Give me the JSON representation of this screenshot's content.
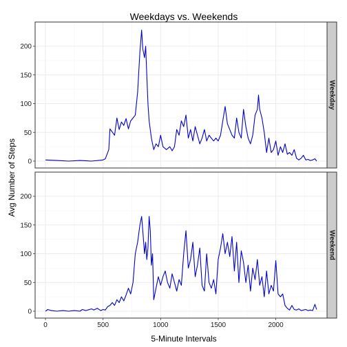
{
  "chart_data": {
    "type": "line",
    "title": "Weekdays vs. Weekends",
    "xlabel": "5-Minute Intervals",
    "ylabel": "Avg Number of Steps",
    "xlim": [
      -90,
      2445
    ],
    "ylim": [
      -12,
      242
    ],
    "x_ticks": [
      0,
      500,
      1000,
      1500,
      2000
    ],
    "y_ticks": [
      0,
      50,
      100,
      150,
      200
    ],
    "grid": true,
    "line_color": "#0000cc",
    "panels": [
      {
        "name": "Weekday",
        "points": [
          [
            0,
            2
          ],
          [
            100,
            1
          ],
          [
            200,
            0
          ],
          [
            300,
            1
          ],
          [
            400,
            0
          ],
          [
            500,
            2
          ],
          [
            520,
            4
          ],
          [
            550,
            20
          ],
          [
            560,
            56
          ],
          [
            600,
            45
          ],
          [
            620,
            75
          ],
          [
            640,
            55
          ],
          [
            660,
            68
          ],
          [
            680,
            62
          ],
          [
            700,
            74
          ],
          [
            720,
            56
          ],
          [
            740,
            70
          ],
          [
            760,
            75
          ],
          [
            780,
            80
          ],
          [
            800,
            120
          ],
          [
            820,
            190
          ],
          [
            835,
            228
          ],
          [
            845,
            195
          ],
          [
            860,
            180
          ],
          [
            870,
            200
          ],
          [
            880,
            150
          ],
          [
            890,
            100
          ],
          [
            900,
            70
          ],
          [
            920,
            40
          ],
          [
            940,
            20
          ],
          [
            960,
            30
          ],
          [
            980,
            25
          ],
          [
            1000,
            45
          ],
          [
            1020,
            25
          ],
          [
            1050,
            20
          ],
          [
            1080,
            25
          ],
          [
            1100,
            18
          ],
          [
            1120,
            25
          ],
          [
            1140,
            55
          ],
          [
            1160,
            45
          ],
          [
            1180,
            70
          ],
          [
            1200,
            60
          ],
          [
            1220,
            80
          ],
          [
            1240,
            40
          ],
          [
            1260,
            55
          ],
          [
            1280,
            35
          ],
          [
            1300,
            60
          ],
          [
            1320,
            45
          ],
          [
            1340,
            30
          ],
          [
            1360,
            40
          ],
          [
            1380,
            55
          ],
          [
            1400,
            35
          ],
          [
            1420,
            45
          ],
          [
            1440,
            40
          ],
          [
            1460,
            35
          ],
          [
            1480,
            40
          ],
          [
            1500,
            35
          ],
          [
            1520,
            45
          ],
          [
            1540,
            70
          ],
          [
            1560,
            95
          ],
          [
            1580,
            65
          ],
          [
            1600,
            55
          ],
          [
            1620,
            45
          ],
          [
            1640,
            40
          ],
          [
            1660,
            75
          ],
          [
            1680,
            50
          ],
          [
            1700,
            40
          ],
          [
            1720,
            90
          ],
          [
            1740,
            60
          ],
          [
            1760,
            40
          ],
          [
            1780,
            30
          ],
          [
            1800,
            45
          ],
          [
            1820,
            80
          ],
          [
            1840,
            90
          ],
          [
            1850,
            115
          ],
          [
            1860,
            90
          ],
          [
            1880,
            75
          ],
          [
            1900,
            50
          ],
          [
            1920,
            15
          ],
          [
            1940,
            40
          ],
          [
            1960,
            15
          ],
          [
            1980,
            20
          ],
          [
            2000,
            35
          ],
          [
            2020,
            10
          ],
          [
            2040,
            25
          ],
          [
            2060,
            15
          ],
          [
            2080,
            30
          ],
          [
            2100,
            12
          ],
          [
            2120,
            15
          ],
          [
            2140,
            10
          ],
          [
            2160,
            20
          ],
          [
            2180,
            5
          ],
          [
            2200,
            2
          ],
          [
            2220,
            5
          ],
          [
            2240,
            10
          ],
          [
            2260,
            2
          ],
          [
            2280,
            3
          ],
          [
            2300,
            1
          ],
          [
            2320,
            2
          ],
          [
            2340,
            4
          ],
          [
            2355,
            0
          ]
        ]
      },
      {
        "name": "Weekend",
        "points": [
          [
            0,
            0
          ],
          [
            20,
            3
          ],
          [
            50,
            1
          ],
          [
            100,
            0
          ],
          [
            150,
            1
          ],
          [
            200,
            0
          ],
          [
            250,
            1
          ],
          [
            300,
            0
          ],
          [
            320,
            3
          ],
          [
            350,
            1
          ],
          [
            400,
            4
          ],
          [
            420,
            2
          ],
          [
            450,
            5
          ],
          [
            480,
            1
          ],
          [
            500,
            3
          ],
          [
            520,
            2
          ],
          [
            540,
            8
          ],
          [
            560,
            10
          ],
          [
            580,
            15
          ],
          [
            600,
            10
          ],
          [
            620,
            20
          ],
          [
            640,
            15
          ],
          [
            660,
            25
          ],
          [
            680,
            18
          ],
          [
            700,
            28
          ],
          [
            720,
            40
          ],
          [
            740,
            30
          ],
          [
            760,
            50
          ],
          [
            780,
            100
          ],
          [
            800,
            120
          ],
          [
            820,
            150
          ],
          [
            835,
            165
          ],
          [
            845,
            140
          ],
          [
            860,
            100
          ],
          [
            870,
            120
          ],
          [
            880,
            90
          ],
          [
            890,
            110
          ],
          [
            900,
            165
          ],
          [
            910,
            140
          ],
          [
            920,
            80
          ],
          [
            930,
            100
          ],
          [
            940,
            20
          ],
          [
            960,
            40
          ],
          [
            980,
            60
          ],
          [
            1000,
            45
          ],
          [
            1020,
            60
          ],
          [
            1040,
            70
          ],
          [
            1060,
            50
          ],
          [
            1080,
            40
          ],
          [
            1100,
            65
          ],
          [
            1120,
            50
          ],
          [
            1140,
            35
          ],
          [
            1160,
            55
          ],
          [
            1180,
            45
          ],
          [
            1200,
            100
          ],
          [
            1220,
            140
          ],
          [
            1240,
            75
          ],
          [
            1260,
            90
          ],
          [
            1280,
            120
          ],
          [
            1300,
            60
          ],
          [
            1320,
            80
          ],
          [
            1340,
            110
          ],
          [
            1360,
            45
          ],
          [
            1380,
            35
          ],
          [
            1400,
            100
          ],
          [
            1420,
            50
          ],
          [
            1440,
            40
          ],
          [
            1460,
            55
          ],
          [
            1480,
            30
          ],
          [
            1500,
            90
          ],
          [
            1520,
            110
          ],
          [
            1540,
            135
          ],
          [
            1560,
            100
          ],
          [
            1580,
            120
          ],
          [
            1600,
            95
          ],
          [
            1620,
            130
          ],
          [
            1640,
            70
          ],
          [
            1660,
            120
          ],
          [
            1680,
            50
          ],
          [
            1700,
            105
          ],
          [
            1720,
            85
          ],
          [
            1740,
            50
          ],
          [
            1760,
            80
          ],
          [
            1780,
            35
          ],
          [
            1800,
            75
          ],
          [
            1820,
            55
          ],
          [
            1840,
            90
          ],
          [
            1860,
            45
          ],
          [
            1880,
            60
          ],
          [
            1900,
            25
          ],
          [
            1920,
            70
          ],
          [
            1940,
            30
          ],
          [
            1960,
            45
          ],
          [
            1980,
            35
          ],
          [
            2000,
            88
          ],
          [
            2020,
            30
          ],
          [
            2040,
            25
          ],
          [
            2060,
            30
          ],
          [
            2080,
            10
          ],
          [
            2100,
            5
          ],
          [
            2120,
            2
          ],
          [
            2140,
            10
          ],
          [
            2160,
            3
          ],
          [
            2180,
            2
          ],
          [
            2200,
            4
          ],
          [
            2220,
            1
          ],
          [
            2240,
            2
          ],
          [
            2260,
            3
          ],
          [
            2280,
            1
          ],
          [
            2300,
            2
          ],
          [
            2320,
            1
          ],
          [
            2340,
            12
          ],
          [
            2355,
            3
          ]
        ]
      }
    ]
  }
}
